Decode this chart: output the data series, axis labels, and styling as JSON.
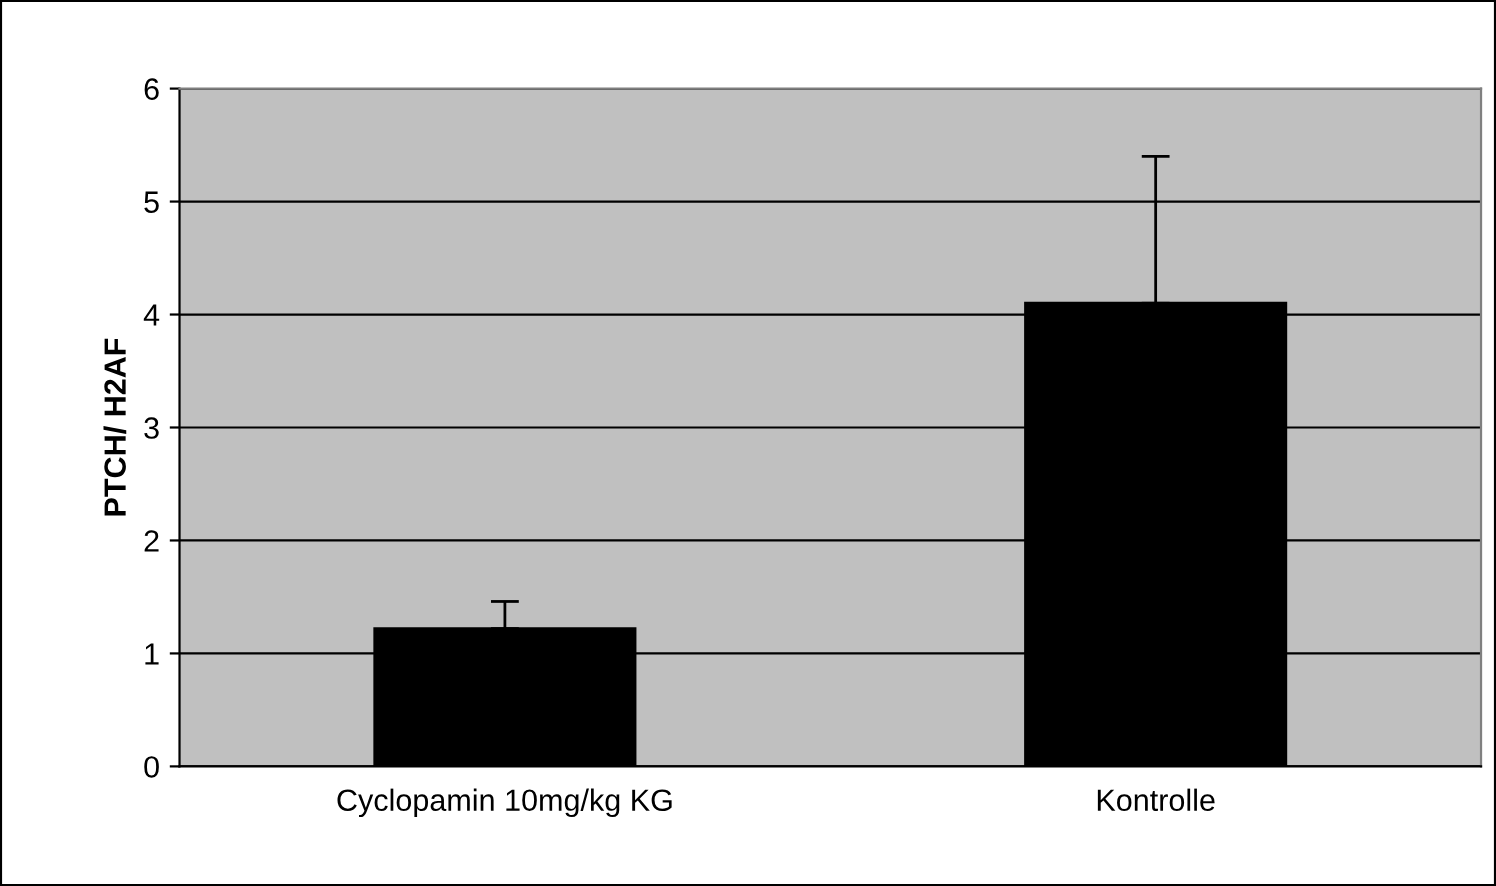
{
  "chart_data": {
    "type": "bar",
    "ylabel": "PTCH/ H2AF",
    "categories": [
      "Cyclopamin 10mg/kg KG",
      "Kontrolle"
    ],
    "values": [
      1.22,
      4.1
    ],
    "color": "#000000",
    "errors": [
      [
        1.22,
        1.46
      ],
      [
        4.1,
        5.4
      ]
    ],
    "ylim": [
      0,
      6
    ],
    "yticks": [
      0,
      1,
      2,
      3,
      4,
      5,
      6
    ],
    "grid": "y"
  }
}
